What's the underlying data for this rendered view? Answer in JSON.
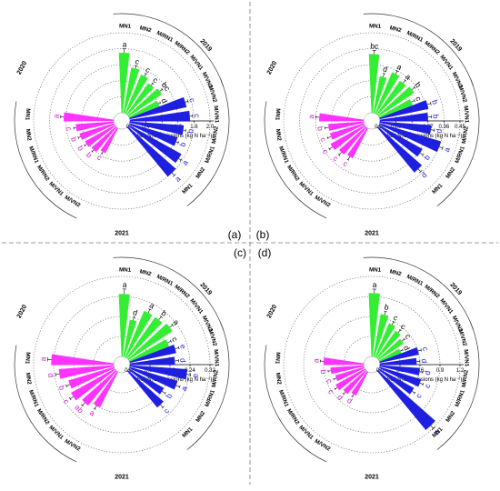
{
  "colors": {
    "y2019": "#33ee33",
    "y2020": "#ff33ff",
    "y2021": "#1f1fe0",
    "sig2019": "#000000",
    "sig2020": "#cc22cc",
    "sig2021": "#1f1fe0"
  },
  "panel_labels": [
    "(a)",
    "(b)",
    "(c)",
    "(d)"
  ],
  "chart_data": [
    {
      "type": "bar",
      "polar": true,
      "panel": "(a)",
      "xlabel": "Soil N₂O emissions (kg N ha⁻¹)",
      "ylim": [
        0,
        2.0
      ],
      "ticks": [
        "0.0",
        "0.4",
        "0.8",
        "1.2",
        "1.6",
        "2.0"
      ],
      "groups": [
        {
          "year": "2019",
          "categories": [
            "MN1",
            "MN2",
            "M/RN1",
            "M/RN2",
            "M/VN1",
            "M/VN2"
          ],
          "values": [
            1.5,
            1.15,
            1.05,
            0.95,
            1.0,
            0.8
          ],
          "errors": [
            0.1,
            0.07,
            0.07,
            0.06,
            0.08,
            0.06
          ],
          "letters": [
            "a",
            "c",
            "c",
            "c",
            "bc",
            "d"
          ]
        },
        {
          "year": "2020",
          "categories": [
            "MN1",
            "MN2",
            "M/RN1",
            "M/RN2",
            "M/VN1",
            "M/VN2"
          ],
          "values": [
            1.25,
            0.95,
            0.9,
            0.85,
            0.8,
            0.7
          ],
          "errors": [
            0.08,
            0.06,
            0.06,
            0.06,
            0.06,
            0.05
          ],
          "letters": [
            "a",
            "c",
            "b",
            "b",
            "b",
            "c"
          ]
        },
        {
          "year": "2021",
          "categories": [
            "MN1",
            "MN2",
            "M/RN1",
            "M/RN2",
            "M/VN1",
            "M/VN2"
          ],
          "values": [
            1.6,
            1.5,
            1.25,
            1.35,
            1.5,
            1.45
          ],
          "errors": [
            0.09,
            0.07,
            0.06,
            0.06,
            0.07,
            0.07
          ],
          "letters": [
            "a",
            "a",
            "b",
            "b",
            "c",
            "c"
          ]
        }
      ]
    },
    {
      "type": "bar",
      "polar": true,
      "panel": "(b)",
      "xlabel": "Soil N₂O emissions (kg N ha⁻¹)",
      "ylim": [
        0,
        0.45
      ],
      "ticks": [
        "0.00",
        "0.09",
        "0.18",
        "0.27",
        "0.36",
        "0.45"
      ],
      "groups": [
        {
          "year": "2019",
          "categories": [
            "MN1",
            "MN2",
            "M/RN1",
            "M/RN2",
            "M/VN1",
            "M/VN2"
          ],
          "values": [
            0.33,
            0.21,
            0.25,
            0.23,
            0.24,
            0.2
          ],
          "errors": [
            0.02,
            0.02,
            0.02,
            0.02,
            0.02,
            0.02
          ],
          "letters": [
            "bc",
            "d",
            "a",
            "a",
            "b",
            "c"
          ]
        },
        {
          "year": "2020",
          "categories": [
            "MN1",
            "MN2",
            "M/RN1",
            "M/RN2",
            "M/VN1",
            "M/VN2"
          ],
          "values": [
            0.25,
            0.2,
            0.2,
            0.22,
            0.2,
            0.19
          ],
          "errors": [
            0.02,
            0.02,
            0.02,
            0.02,
            0.02,
            0.02
          ],
          "letters": [
            "a",
            "b",
            "c",
            "c",
            "c",
            "c"
          ]
        },
        {
          "year": "2021",
          "categories": [
            "MN1",
            "MN2",
            "M/RN1",
            "M/RN2",
            "M/VN1",
            "M/VN2"
          ],
          "values": [
            0.33,
            0.28,
            0.36,
            0.29,
            0.27,
            0.28
          ],
          "errors": [
            0.02,
            0.02,
            0.02,
            0.02,
            0.02,
            0.02
          ],
          "letters": [
            "d",
            "b",
            "a",
            "d",
            "b",
            "b"
          ]
        }
      ]
    },
    {
      "type": "bar",
      "polar": true,
      "panel": "(c)",
      "xlabel": "Soil N₂O emissions (kg N ha⁻¹)",
      "ylim": [
        0,
        0.32
      ],
      "ticks": [
        "0.00",
        "0.08",
        "0.16",
        "0.24",
        "0.32"
      ],
      "groups": [
        {
          "year": "2019",
          "categories": [
            "MN1",
            "MN2",
            "M/RN1",
            "M/RN2",
            "M/VN1",
            "M/VN2"
          ],
          "values": [
            0.25,
            0.15,
            0.2,
            0.2,
            0.21,
            0.17
          ],
          "errors": [
            0.02,
            0.015,
            0.015,
            0.015,
            0.015,
            0.015
          ],
          "letters": [
            "a",
            "d",
            "a",
            "b",
            "a",
            "c"
          ]
        },
        {
          "year": "2020",
          "categories": [
            "MN1",
            "MN2",
            "M/RN1",
            "M/RN2",
            "M/VN1",
            "M/VN2"
          ],
          "values": [
            0.25,
            0.22,
            0.19,
            0.2,
            0.18,
            0.16
          ],
          "errors": [
            0.015,
            0.015,
            0.015,
            0.015,
            0.015,
            0.015
          ],
          "letters": [
            "a",
            "d",
            "b",
            "c",
            "ab",
            "a"
          ]
        },
        {
          "year": "2021",
          "categories": [
            "MN1",
            "MN2",
            "M/RN1",
            "M/RN2",
            "M/VN1",
            "M/VN2"
          ],
          "values": [
            0.19,
            0.16,
            0.2,
            0.23,
            0.18,
            0.19
          ],
          "errors": [
            0.015,
            0.015,
            0.015,
            0.015,
            0.015,
            0.015
          ],
          "letters": [
            "c",
            "b",
            "a",
            "e",
            "d",
            "e"
          ]
        }
      ]
    },
    {
      "type": "bar",
      "polar": true,
      "panel": "(d)",
      "xlabel": "Soil N₂O emissions (kg N ha⁻¹)",
      "ylim": [
        0,
        1.2
      ],
      "ticks": [
        "0.0",
        "0.3",
        "0.6",
        "0.9",
        "1.2"
      ],
      "groups": [
        {
          "year": "2019",
          "categories": [
            "MN1",
            "MN2",
            "M/RN1",
            "M/RN2",
            "M/VN1",
            "M/VN2"
          ],
          "values": [
            0.95,
            0.65,
            0.55,
            0.5,
            0.45,
            0.35
          ],
          "errors": [
            0.06,
            0.05,
            0.05,
            0.05,
            0.05,
            0.04
          ],
          "letters": [
            "a",
            "b",
            "c",
            "c",
            "c",
            "d"
          ]
        },
        {
          "year": "2020",
          "categories": [
            "MN1",
            "MN2",
            "M/RN1",
            "M/RN2",
            "M/VN1",
            "M/VN2"
          ],
          "values": [
            0.6,
            0.5,
            0.45,
            0.5,
            0.45,
            0.4
          ],
          "errors": [
            0.05,
            0.04,
            0.04,
            0.04,
            0.04,
            0.04
          ],
          "letters": [
            "a",
            "b",
            "c",
            "c",
            "d",
            "d"
          ]
        },
        {
          "year": "2021",
          "categories": [
            "MN1",
            "MN2",
            "M/RN1",
            "M/RN2",
            "M/VN1",
            "M/VN2"
          ],
          "values": [
            1.15,
            0.6,
            0.65,
            0.6,
            0.55,
            0.6
          ],
          "errors": [
            0.06,
            0.05,
            0.05,
            0.05,
            0.05,
            0.05
          ],
          "letters": [
            "a",
            "c",
            "c",
            "d",
            "d",
            "c"
          ]
        }
      ]
    }
  ]
}
